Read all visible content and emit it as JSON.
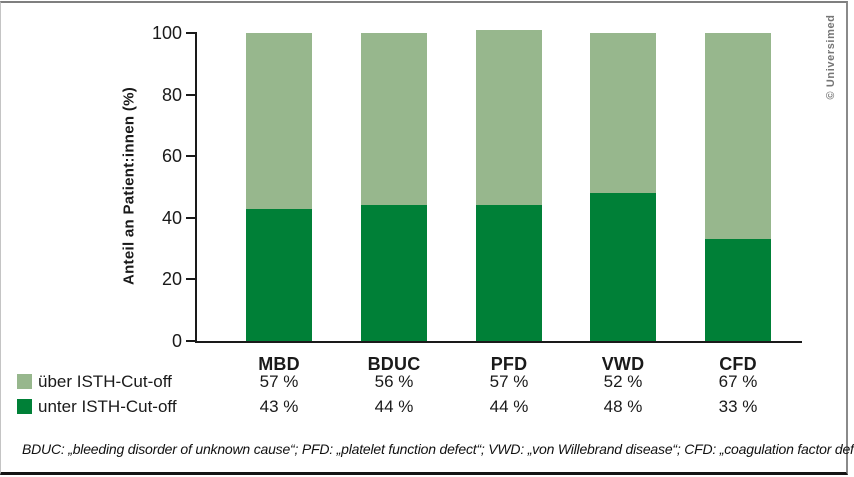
{
  "page": {
    "copyright": "© Universimed",
    "footnote": "BDUC: „bleeding disorder of unknown cause“; PFD: „platelet function defect“; VWD: „von Willebrand disease“; CFD: „coagulation factor deficiency"
  },
  "chart_data": {
    "type": "bar",
    "stacked": true,
    "title": "",
    "xlabel": "",
    "ylabel": "Anteil an Patient:innen (%)",
    "ylim": [
      0,
      100
    ],
    "y_ticks": [
      0,
      20,
      40,
      60,
      80,
      100
    ],
    "grid": false,
    "legend_position": "bottom-left",
    "categories": [
      "MBD",
      "BDUC",
      "PFD",
      "VWD",
      "CFD"
    ],
    "series": [
      {
        "name": "über ISTH-Cut-off",
        "color": "#97B78D",
        "stack_position": "top",
        "values": [
          57,
          56,
          57,
          52,
          67
        ],
        "value_labels": [
          "57 %",
          "56 %",
          "57 %",
          "52 %",
          "67 %"
        ]
      },
      {
        "name": "unter ISTH-Cut-off",
        "color": "#008037",
        "stack_position": "bottom",
        "values": [
          43,
          44,
          44,
          48,
          33
        ],
        "value_labels": [
          "43 %",
          "44 %",
          "44 %",
          "48 %",
          "33 %"
        ]
      }
    ]
  }
}
